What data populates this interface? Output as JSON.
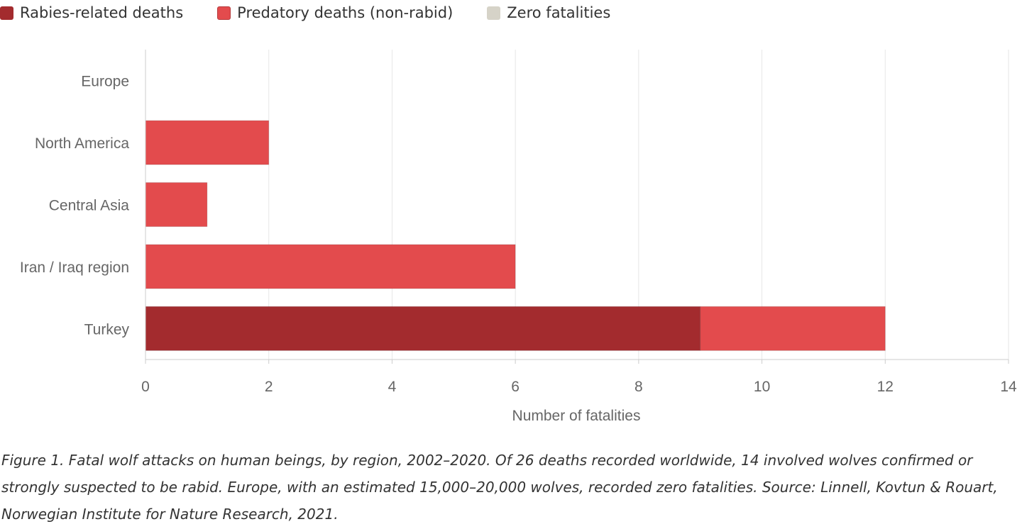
{
  "chart_data": {
    "type": "bar",
    "orientation": "horizontal",
    "stacked": true,
    "categories": [
      "Europe",
      "North America",
      "Central Asia",
      "Iran / Iraq region",
      "Turkey"
    ],
    "series": [
      {
        "name": "Rabies-related deaths",
        "color": "#a32b2e",
        "values": [
          0,
          0,
          0,
          0,
          9
        ]
      },
      {
        "name": "Predatory deaths (non-rabid)",
        "color": "#e34b4d",
        "values": [
          0,
          2,
          1,
          6,
          3
        ]
      },
      {
        "name": "Zero fatalities",
        "color": "#d6d3c8",
        "values": [
          0,
          0,
          0,
          0,
          0
        ]
      }
    ],
    "xlabel": "Number of fatalities",
    "xlim": [
      0,
      14
    ],
    "xticks": [
      0,
      2,
      4,
      6,
      8,
      10,
      12,
      14
    ],
    "grid": true,
    "legend": "top-left"
  },
  "caption": "Figure 1. Fatal wolf attacks on human beings, by region, 2002–2020. Of 26 deaths recorded worldwide, 14 involved wolves confirmed or strongly suspected to be rabid. Europe, with an estimated 15,000–20,000 wolves, recorded zero fatalities. Source: Linnell, Kovtun & Rouart, Norwegian Institute for Nature Research, 2021."
}
